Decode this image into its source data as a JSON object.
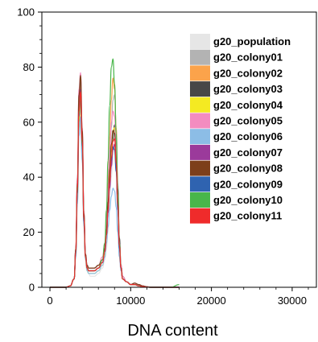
{
  "chart_data": {
    "type": "line",
    "title": "",
    "xlabel": "DNA content",
    "ylabel": "",
    "xlim": [
      -1000,
      33000
    ],
    "ylim": [
      0,
      100
    ],
    "x_ticks": [
      0,
      10000,
      20000,
      30000
    ],
    "y_ticks": [
      0,
      20,
      40,
      60,
      80,
      100
    ],
    "grid": false,
    "legend_position": "top-right",
    "x_grid": [
      0,
      500,
      1000,
      1500,
      2000,
      2500,
      3000,
      3200,
      3400,
      3600,
      3800,
      4000,
      4200,
      4400,
      4600,
      4800,
      5000,
      5500,
      6000,
      6500,
      6800,
      7000,
      7200,
      7400,
      7600,
      7800,
      8000,
      8200,
      8400,
      8600,
      8800,
      9000,
      9500,
      10000,
      10500,
      11000,
      11500,
      12000,
      12500,
      13000,
      14000,
      15000,
      16000
    ],
    "series": [
      {
        "name": "g20_population",
        "color": "#e6e6e6",
        "values": [
          0,
          0,
          0,
          0,
          0,
          0.5,
          3,
          12,
          30,
          55,
          60,
          45,
          22,
          10,
          6,
          5,
          4,
          4,
          5,
          7,
          10,
          14,
          20,
          30,
          40,
          48,
          52,
          45,
          30,
          15,
          7,
          3,
          2,
          1,
          1,
          0.5,
          0.3,
          0.1,
          0,
          0,
          0,
          0,
          0
        ]
      },
      {
        "name": "g20_colony01",
        "color": "#b3b3b3",
        "values": [
          0,
          0,
          0,
          0,
          0,
          0.5,
          3,
          12,
          34,
          62,
          70,
          52,
          25,
          11,
          7,
          6,
          6,
          6,
          7,
          9,
          13,
          20,
          30,
          45,
          58,
          68,
          70,
          58,
          38,
          18,
          8,
          4,
          2,
          1,
          1.5,
          1,
          0.5,
          0.2,
          0,
          0,
          0,
          0,
          0
        ]
      },
      {
        "name": "g20_colony02",
        "color": "#fba34b",
        "values": [
          0,
          0,
          0,
          0,
          0,
          0.5,
          3,
          13,
          36,
          66,
          74,
          55,
          26,
          11,
          7,
          6,
          6,
          6,
          7,
          10,
          15,
          24,
          38,
          55,
          68,
          76,
          72,
          58,
          36,
          17,
          8,
          4,
          2,
          1,
          1,
          0.5,
          0.3,
          0.1,
          0,
          0,
          0,
          0,
          0
        ]
      },
      {
        "name": "g20_colony03",
        "color": "#474747",
        "values": [
          0,
          0,
          0,
          0,
          0,
          0.5,
          3,
          14,
          38,
          68,
          76,
          56,
          27,
          12,
          8,
          7,
          7,
          7,
          8,
          10,
          14,
          20,
          28,
          38,
          46,
          54,
          59,
          52,
          36,
          18,
          8,
          4,
          2,
          1,
          1.5,
          1,
          0.5,
          0.2,
          0,
          0,
          0,
          0,
          0
        ]
      },
      {
        "name": "g20_colony04",
        "color": "#f4ea22",
        "values": [
          0,
          0,
          0,
          0,
          0,
          0.5,
          3,
          12,
          33,
          60,
          68,
          50,
          24,
          10,
          6,
          5,
          5,
          5,
          6,
          8,
          12,
          18,
          28,
          40,
          50,
          57,
          58,
          48,
          30,
          15,
          7,
          3,
          2,
          1,
          1,
          0.5,
          0.3,
          0.1,
          0,
          0,
          0,
          0,
          0
        ]
      },
      {
        "name": "g20_colony05",
        "color": "#f38cc0",
        "values": [
          0,
          0,
          0,
          0,
          0,
          0.5,
          3,
          14,
          40,
          72,
          78,
          58,
          28,
          12,
          8,
          7,
          7,
          7,
          8,
          11,
          16,
          24,
          36,
          50,
          60,
          64,
          62,
          50,
          32,
          16,
          8,
          4,
          2,
          1,
          1.5,
          1,
          0.5,
          0.2,
          0,
          0,
          0,
          0,
          0
        ]
      },
      {
        "name": "g20_colony06",
        "color": "#8cbde6",
        "values": [
          0,
          0,
          0,
          0,
          0,
          0.5,
          3,
          11,
          30,
          55,
          62,
          46,
          22,
          10,
          6,
          5,
          5,
          5,
          6,
          8,
          11,
          16,
          22,
          28,
          33,
          36,
          35,
          29,
          20,
          11,
          6,
          3,
          2,
          1,
          1,
          0.5,
          0.3,
          0.1,
          0,
          0,
          0,
          0,
          0
        ]
      },
      {
        "name": "g20_colony07",
        "color": "#9b3a9b",
        "values": [
          0,
          0,
          0,
          0,
          0,
          0.5,
          3,
          13,
          36,
          65,
          72,
          54,
          26,
          11,
          7,
          6,
          6,
          6,
          7,
          9,
          13,
          19,
          27,
          36,
          44,
          50,
          52,
          44,
          30,
          15,
          7,
          3,
          2,
          1,
          1,
          0.5,
          0.3,
          0.1,
          0,
          0,
          0,
          0,
          0
        ]
      },
      {
        "name": "g20_colony08",
        "color": "#7d3f1a",
        "values": [
          0,
          0,
          0,
          0,
          0,
          0.5,
          3,
          14,
          38,
          70,
          77,
          57,
          27,
          12,
          8,
          7,
          7,
          7,
          8,
          10,
          14,
          21,
          31,
          43,
          52,
          57,
          56,
          46,
          30,
          15,
          7,
          3,
          2,
          1,
          1.5,
          1,
          0.5,
          0.2,
          0,
          0,
          0,
          0,
          0
        ]
      },
      {
        "name": "g20_colony09",
        "color": "#2f63b0",
        "values": [
          0,
          0,
          0,
          0,
          0,
          0.5,
          3,
          12,
          34,
          62,
          69,
          51,
          24,
          11,
          7,
          6,
          6,
          6,
          7,
          9,
          13,
          19,
          28,
          38,
          46,
          51,
          50,
          42,
          28,
          14,
          7,
          3,
          2,
          1,
          1,
          0.5,
          0.3,
          0.1,
          0,
          0,
          0,
          0,
          0
        ]
      },
      {
        "name": "g20_colony10",
        "color": "#48b64a",
        "values": [
          0,
          0,
          0,
          0,
          0,
          0.5,
          3,
          13,
          35,
          63,
          70,
          52,
          25,
          11,
          7,
          6,
          6,
          6,
          7,
          10,
          16,
          28,
          46,
          66,
          80,
          83,
          74,
          56,
          34,
          16,
          7,
          3,
          2,
          1,
          1,
          0.5,
          0.3,
          0.1,
          0,
          0,
          0,
          0,
          1
        ]
      },
      {
        "name": "g20_colony11",
        "color": "#ef2b2b",
        "values": [
          0,
          0,
          0,
          0,
          0,
          0.5,
          3,
          13,
          36,
          64,
          71,
          53,
          25,
          11,
          7,
          6,
          6,
          6,
          7,
          9,
          13,
          19,
          28,
          38,
          47,
          53,
          54,
          45,
          30,
          15,
          7,
          3,
          2,
          1,
          1,
          0.5,
          0.3,
          0.1,
          0,
          0,
          0,
          0,
          0
        ]
      }
    ]
  }
}
